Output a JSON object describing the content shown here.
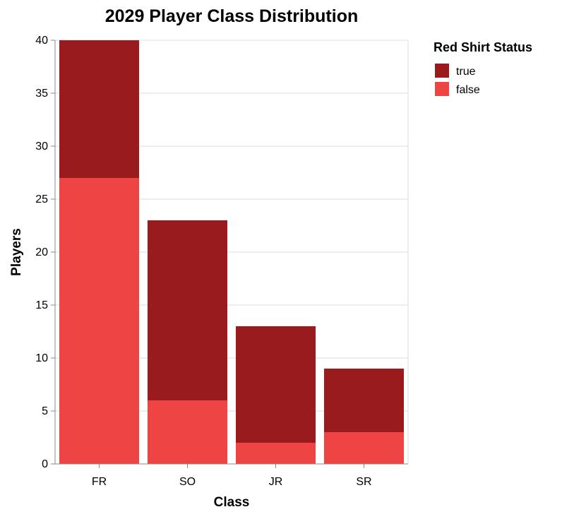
{
  "chart_data": {
    "type": "bar",
    "stacked": true,
    "title": "2029 Player Class Distribution",
    "xlabel": "Class",
    "ylabel": "Players",
    "categories": [
      "FR",
      "SO",
      "JR",
      "SR"
    ],
    "series": [
      {
        "name": "false",
        "color": "#ef4444",
        "values": [
          27,
          6,
          2,
          3
        ]
      },
      {
        "name": "true",
        "color": "#991b1e",
        "values": [
          13,
          17,
          11,
          6
        ]
      }
    ],
    "ylim": [
      0,
      40
    ],
    "yticks": [
      0,
      5,
      10,
      15,
      20,
      25,
      30,
      35,
      40
    ],
    "grid": true,
    "legend": {
      "title": "Red Shirt Status",
      "placement": "right",
      "items": [
        {
          "label": "true",
          "color": "#991b1e"
        },
        {
          "label": "false",
          "color": "#ef4444"
        }
      ]
    }
  }
}
